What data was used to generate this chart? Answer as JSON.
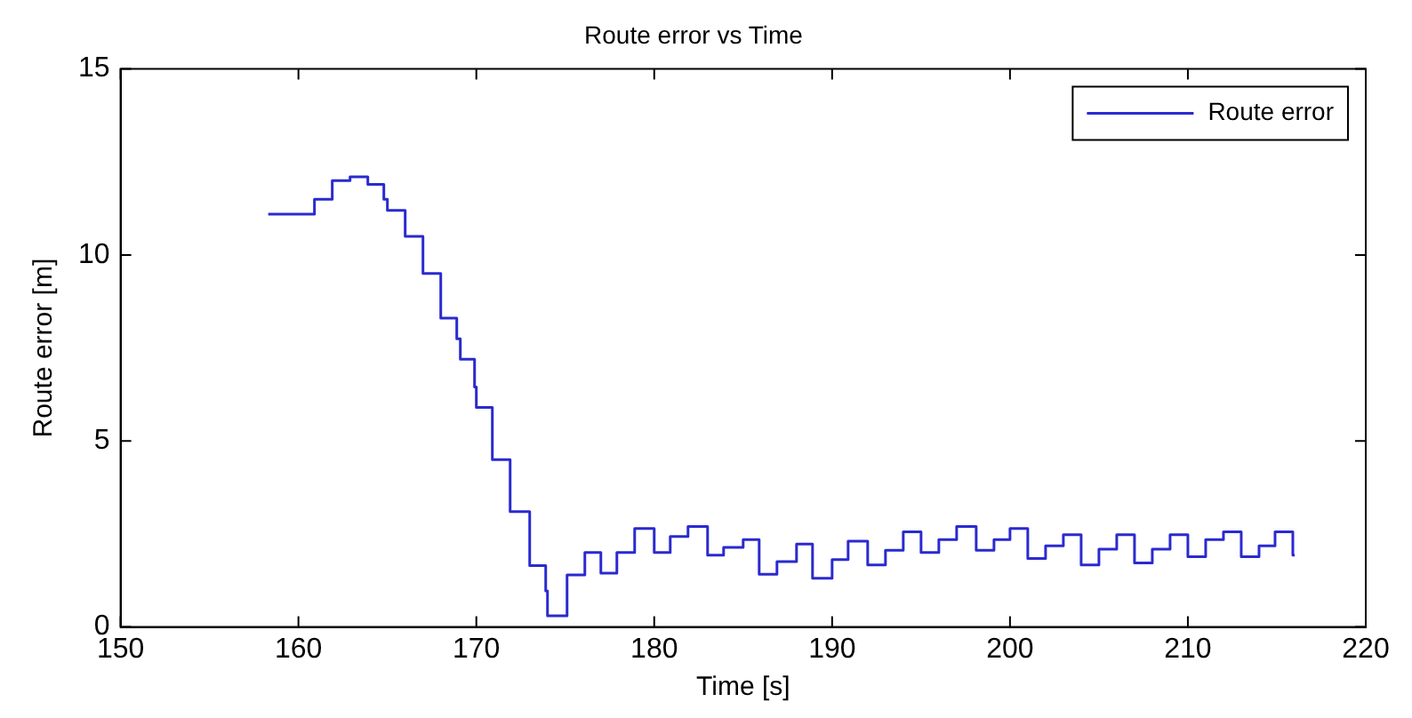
{
  "chart_data": {
    "type": "step",
    "title": "Route error vs Time",
    "xlabel": "Time [s]",
    "ylabel": "Route error [m]",
    "xlim": [
      150,
      220
    ],
    "xticks": [
      150,
      160,
      170,
      180,
      190,
      200,
      210,
      220
    ],
    "ylim": [
      0,
      15
    ],
    "yticks": [
      0,
      5,
      10,
      15
    ],
    "grid": false,
    "legend": "top right",
    "series": [
      {
        "name": "Route error",
        "color": "#2a2ad0",
        "x": [
          158.3,
          160.9,
          161.9,
          162.9,
          163.9,
          164.8,
          165.0,
          166.0,
          167.0,
          168.0,
          168.9,
          169.1,
          169.9,
          170.0,
          170.9,
          171.9,
          173.0,
          173.9,
          174.0,
          175.1,
          176.1,
          177.0,
          177.9,
          178.9,
          180.0,
          180.9,
          181.9,
          183.0,
          183.9,
          185.0,
          185.9,
          186.9,
          188.0,
          188.9,
          190.0,
          190.9,
          192.0,
          193.0,
          194.0,
          195.0,
          196.0,
          197.0,
          198.1,
          199.1,
          200.0,
          201.0,
          202.0,
          203.0,
          204.0,
          205.0,
          206.0,
          207.0,
          208.0,
          209.0,
          210.0,
          211.0,
          212.0,
          213.0,
          214.0,
          214.9,
          215.9,
          216.0
        ],
        "values": [
          11.1,
          11.5,
          12.0,
          12.1,
          11.9,
          11.5,
          11.2,
          10.5,
          9.5,
          8.3,
          7.75,
          7.2,
          6.45,
          5.9,
          4.5,
          3.1,
          1.65,
          0.97,
          0.3,
          1.4,
          2.0,
          1.45,
          2.0,
          2.65,
          2.0,
          2.43,
          2.7,
          1.93,
          2.14,
          2.35,
          1.42,
          1.76,
          2.23,
          1.31,
          1.81,
          2.31,
          1.67,
          2.06,
          2.56,
          2.0,
          2.35,
          2.7,
          2.06,
          2.35,
          2.65,
          1.84,
          2.18,
          2.48,
          1.67,
          2.09,
          2.48,
          1.72,
          2.09,
          2.48,
          1.89,
          2.35,
          2.56,
          1.89,
          2.18,
          2.56,
          1.93,
          1.93
        ]
      }
    ]
  }
}
